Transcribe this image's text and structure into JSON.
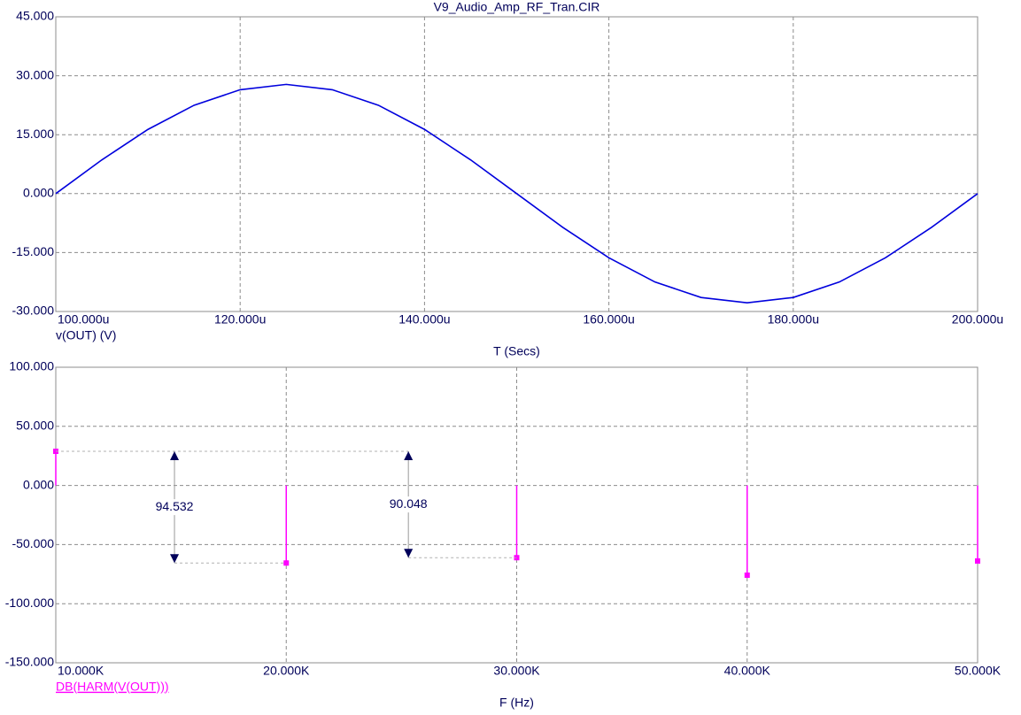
{
  "chart_data": [
    {
      "type": "line",
      "title": "V9_Audio_Amp_RF_Tran.CIR",
      "x_label": "T (Secs)",
      "x": [
        0.0001,
        0.000105,
        0.00011,
        0.000115,
        0.00012,
        0.000125,
        0.00013,
        0.000135,
        0.00014,
        0.000145,
        0.00015,
        0.000155,
        0.00016,
        0.000165,
        0.00017,
        0.000175,
        0.00018,
        0.000185,
        0.00019,
        0.000195,
        0.0002
      ],
      "series": [
        {
          "name": "v(OUT) (V)",
          "color": "#0000dd",
          "values": [
            0,
            8.59,
            16.34,
            22.49,
            26.44,
            27.8,
            26.44,
            22.49,
            16.34,
            8.59,
            0,
            -8.59,
            -16.34,
            -22.49,
            -26.44,
            -27.8,
            -26.44,
            -22.49,
            -16.34,
            -8.59,
            0
          ]
        }
      ],
      "xlim": [
        0.0001,
        0.0002
      ],
      "xticks": [
        {
          "value": 0.0001,
          "label": "100.000u"
        },
        {
          "value": 0.00012,
          "label": "120.000u"
        },
        {
          "value": 0.00014,
          "label": "140.000u"
        },
        {
          "value": 0.00016,
          "label": "160.000u"
        },
        {
          "value": 0.00018,
          "label": "180.000u"
        },
        {
          "value": 0.0002,
          "label": "200.000u"
        }
      ],
      "ylim": [
        -30,
        45
      ],
      "yticks": [
        {
          "value": -30,
          "label": "-30.000"
        },
        {
          "value": -15,
          "label": "-15.000"
        },
        {
          "value": 0,
          "label": "0.000"
        },
        {
          "value": 15,
          "label": "15.000"
        },
        {
          "value": 30,
          "label": "30.000"
        },
        {
          "value": 45,
          "label": "45.000"
        }
      ],
      "grid": true
    },
    {
      "type": "stem",
      "x_label": "F (Hz)",
      "x": [
        10000,
        20000,
        30000,
        40000,
        50000
      ],
      "series": [
        {
          "name": "DB(HARM(V(OUT)))",
          "color": "#ff00ff",
          "values": [
            28.9,
            -65.6,
            -61.1,
            -75.9,
            -63.9
          ]
        }
      ],
      "xlim": [
        10000,
        50000
      ],
      "xticks": [
        {
          "value": 10000,
          "label": "10.000K"
        },
        {
          "value": 20000,
          "label": "20.000K"
        },
        {
          "value": 30000,
          "label": "30.000K"
        },
        {
          "value": 40000,
          "label": "40.000K"
        },
        {
          "value": 50000,
          "label": "50.000K"
        }
      ],
      "ylim": [
        -150,
        100
      ],
      "yticks": [
        {
          "value": -150,
          "label": "-150.000"
        },
        {
          "value": -100,
          "label": "-100.000"
        },
        {
          "value": -50,
          "label": "-50.000"
        },
        {
          "value": 0,
          "label": "0.000"
        },
        {
          "value": 50,
          "label": "50.000"
        },
        {
          "value": 100,
          "label": "100.000"
        }
      ],
      "annotations": [
        "94.532",
        "90.048"
      ],
      "grid": true
    }
  ]
}
